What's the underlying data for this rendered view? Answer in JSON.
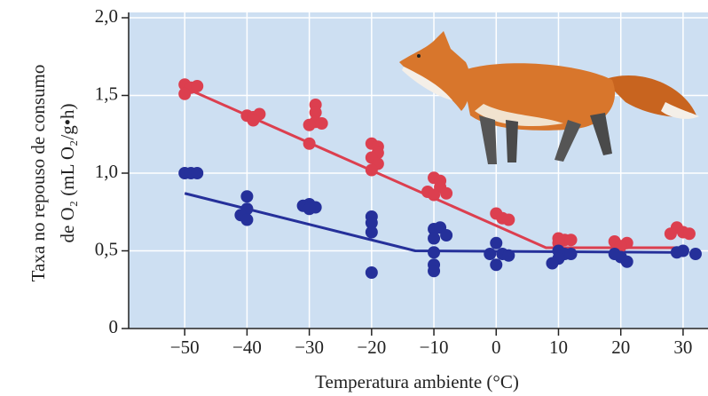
{
  "chart_data": {
    "type": "scatter",
    "x_label": "Temperatura ambiente (°C)",
    "y_label": [
      "Taxa no repouso de consumo",
      "de O₂ (mL O₂/g•h)"
    ],
    "xlim": [
      -59,
      34
    ],
    "ylim": [
      0,
      2.0
    ],
    "xticks": [
      {
        "value": -50,
        "label": "−50"
      },
      {
        "value": -40,
        "label": "−40"
      },
      {
        "value": -30,
        "label": "−30"
      },
      {
        "value": -20,
        "label": "−20"
      },
      {
        "value": -10,
        "label": "−10"
      },
      0,
      10,
      20,
      30
    ],
    "yticks": [
      0,
      {
        "value": 0.5,
        "label": "0,5"
      },
      {
        "value": 1.0,
        "label": "1,0"
      },
      {
        "value": 1.5,
        "label": "1,5"
      },
      {
        "value": 2.0,
        "label": "2,0"
      }
    ],
    "grid": true,
    "background": "#cddff2",
    "series": [
      {
        "color": "#dc3f4f",
        "x": [
          -50,
          -49,
          -48,
          -50,
          -40,
          -39,
          -38,
          -39,
          -29,
          -29,
          -29,
          -28,
          -30,
          -30,
          -20,
          -19,
          -19,
          -20,
          -19,
          -20,
          -10,
          -9,
          -9,
          -11,
          -10,
          -8,
          0,
          1,
          2,
          10,
          11,
          12,
          10,
          19,
          21,
          20,
          29,
          30,
          28,
          31
        ],
        "values": [
          1.57,
          1.55,
          1.56,
          1.51,
          1.37,
          1.36,
          1.38,
          1.34,
          1.44,
          1.39,
          1.33,
          1.32,
          1.31,
          1.19,
          1.19,
          1.17,
          1.13,
          1.1,
          1.06,
          1.02,
          0.97,
          0.95,
          0.91,
          0.88,
          0.86,
          0.87,
          0.74,
          0.71,
          0.7,
          0.58,
          0.57,
          0.57,
          0.55,
          0.56,
          0.55,
          0.53,
          0.65,
          0.62,
          0.61,
          0.61
        ]
      },
      {
        "color": "#25309a",
        "x": [
          -50,
          -49,
          -48,
          -40,
          -40,
          -41,
          -40,
          -30,
          -29,
          -31,
          -30,
          -20,
          -20,
          -20,
          -20,
          -10,
          -9,
          -10,
          -8,
          -10,
          -10,
          -10,
          0,
          -1,
          1,
          2,
          0,
          10,
          11,
          10,
          9,
          12,
          20,
          21,
          19,
          30,
          32,
          29
        ],
        "values": [
          1.0,
          1.0,
          1.0,
          0.85,
          0.77,
          0.73,
          0.7,
          0.8,
          0.78,
          0.79,
          0.77,
          0.72,
          0.68,
          0.62,
          0.36,
          0.64,
          0.65,
          0.58,
          0.6,
          0.49,
          0.41,
          0.37,
          0.55,
          0.48,
          0.48,
          0.47,
          0.41,
          0.5,
          0.48,
          0.45,
          0.42,
          0.48,
          0.46,
          0.43,
          0.48,
          0.5,
          0.48,
          0.49
        ]
      }
    ],
    "fit_lines": [
      {
        "color": "#dc3f4f",
        "x": [
          -50,
          8,
          30
        ],
        "values": [
          1.55,
          0.52,
          0.52
        ]
      },
      {
        "color": "#25309a",
        "x": [
          -50,
          -13,
          30
        ],
        "values": [
          0.87,
          0.5,
          0.49
        ]
      }
    ]
  }
}
